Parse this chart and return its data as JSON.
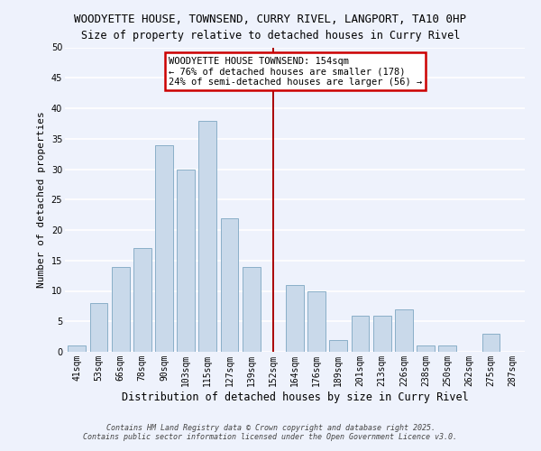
{
  "title": "WOODYETTE HOUSE, TOWNSEND, CURRY RIVEL, LANGPORT, TA10 0HP",
  "subtitle": "Size of property relative to detached houses in Curry Rivel",
  "xlabel": "Distribution of detached houses by size in Curry Rivel",
  "ylabel": "Number of detached properties",
  "bar_labels": [
    "41sqm",
    "53sqm",
    "66sqm",
    "78sqm",
    "90sqm",
    "103sqm",
    "115sqm",
    "127sqm",
    "139sqm",
    "152sqm",
    "164sqm",
    "176sqm",
    "189sqm",
    "201sqm",
    "213sqm",
    "226sqm",
    "238sqm",
    "250sqm",
    "262sqm",
    "275sqm",
    "287sqm"
  ],
  "bar_values": [
    1,
    8,
    14,
    17,
    34,
    30,
    38,
    22,
    14,
    0,
    11,
    10,
    2,
    6,
    6,
    7,
    1,
    1,
    0,
    3,
    0
  ],
  "bar_color": "#c9d9ea",
  "bar_edge_color": "#8aafc8",
  "vline_x_label": "152sqm",
  "vline_color": "#aa0000",
  "annotation_title": "WOODYETTE HOUSE TOWNSEND: 154sqm",
  "annotation_line1": "← 76% of detached houses are smaller (178)",
  "annotation_line2": "24% of semi-detached houses are larger (56) →",
  "annotation_box_color": "#ffffff",
  "annotation_box_edge": "#cc0000",
  "ylim": [
    0,
    50
  ],
  "yticks": [
    0,
    5,
    10,
    15,
    20,
    25,
    30,
    35,
    40,
    45,
    50
  ],
  "background_color": "#eef2fc",
  "grid_color": "#ffffff",
  "footer_line1": "Contains HM Land Registry data © Crown copyright and database right 2025.",
  "footer_line2": "Contains public sector information licensed under the Open Government Licence v3.0.",
  "title_fontsize": 9.0,
  "subtitle_fontsize": 8.5,
  "xlabel_fontsize": 8.5,
  "ylabel_fontsize": 8.0,
  "tick_fontsize": 7.0,
  "annotation_fontsize": 7.5,
  "footer_fontsize": 6.0
}
